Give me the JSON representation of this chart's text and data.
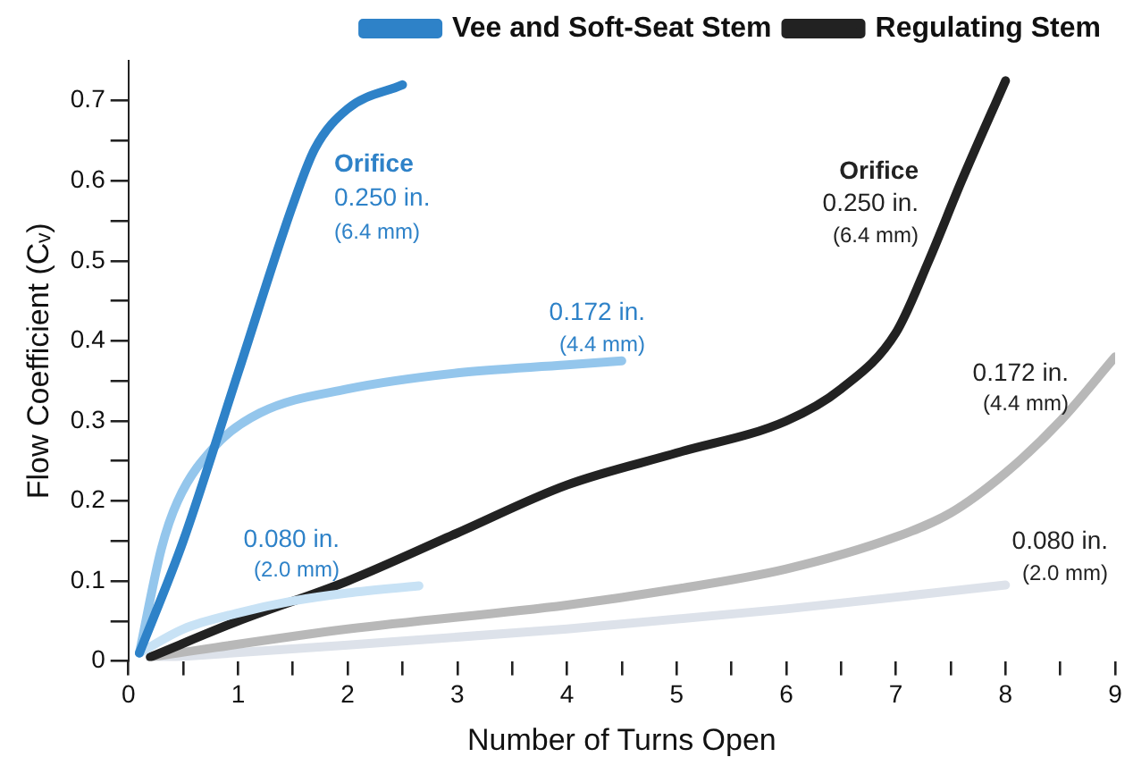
{
  "chart_data": {
    "type": "line",
    "xlabel": "Number of Turns Open",
    "ylabel": "Flow Coefficient (Cᵥ)",
    "xlim": [
      0,
      9
    ],
    "ylim": [
      0,
      0.75
    ],
    "xticks": [
      0,
      {
        "value": 0.5,
        "label": null
      },
      1,
      {
        "value": 1.5,
        "label": null
      },
      2,
      {
        "value": 2.5,
        "label": null
      },
      3,
      {
        "value": 3.5,
        "label": null
      },
      4,
      {
        "value": 4.5,
        "label": null
      },
      5,
      {
        "value": 5.5,
        "label": null
      },
      6,
      {
        "value": 6.5,
        "label": null
      },
      7,
      {
        "value": 7.5,
        "label": null
      },
      8,
      {
        "value": 8.5,
        "label": null
      },
      9
    ],
    "yticks": [
      0,
      {
        "value": 0.05,
        "label": null
      },
      0.1,
      {
        "value": 0.15,
        "label": null
      },
      0.2,
      {
        "value": 0.25,
        "label": null
      },
      0.3,
      {
        "value": 0.35,
        "label": null
      },
      0.4,
      {
        "value": 0.45,
        "label": null
      },
      0.5,
      {
        "value": 0.55,
        "label": null
      },
      0.6,
      {
        "value": 0.65,
        "label": null
      },
      0.7
    ],
    "grid": false,
    "legend": "top",
    "marker": "none",
    "line_style": "solid",
    "series": [
      {
        "name": "Vee and Soft-Seat Stem",
        "color": "#2e82c8",
        "x": [
          0.1,
          0.5,
          1.0,
          1.5,
          1.7,
          2.0,
          2.5
        ],
        "values": [
          0.01,
          0.15,
          0.36,
          0.57,
          0.64,
          0.69,
          0.72
        ]
      },
      {
        "color": "#94c6ec",
        "x": [
          0.1,
          0.3,
          0.45,
          0.8,
          1.2,
          2.0,
          3.0,
          4.0,
          4.5
        ],
        "values": [
          0.01,
          0.14,
          0.2,
          0.27,
          0.31,
          0.34,
          0.36,
          0.37,
          0.375
        ]
      },
      {
        "color": "#c8e2f5",
        "x": [
          0.1,
          0.5,
          1.0,
          1.5,
          2.0,
          2.65
        ],
        "values": [
          0.01,
          0.04,
          0.06,
          0.075,
          0.085,
          0.094
        ]
      },
      {
        "name": "Regulating Stem",
        "color": "#222222",
        "x": [
          0.2,
          1,
          2,
          3,
          4,
          5,
          6,
          6.5,
          7,
          7.3,
          7.6,
          8
        ],
        "values": [
          0.005,
          0.05,
          0.1,
          0.16,
          0.22,
          0.26,
          0.3,
          0.34,
          0.41,
          0.5,
          0.6,
          0.725
        ]
      },
      {
        "color": "#b8b8b8",
        "x": [
          0.2,
          2,
          4,
          5,
          6,
          7,
          7.5,
          8,
          8.5,
          9
        ],
        "values": [
          0.005,
          0.04,
          0.07,
          0.09,
          0.115,
          0.155,
          0.185,
          0.235,
          0.3,
          0.38
        ]
      },
      {
        "color": "#dde2ea",
        "x": [
          0.2,
          2,
          4,
          6,
          8
        ],
        "values": [
          0.003,
          0.02,
          0.04,
          0.065,
          0.095
        ]
      }
    ],
    "annotations": [
      "Orifice\n0.250 in.\n(6.4 mm)",
      "0.172 in.\n(4.4 mm)",
      "0.080 in.\n(2.0 mm)",
      "Orifice\n0.250 in.\n(6.4 mm)",
      "0.172 in.\n(4.4 mm)",
      "0.080 in.\n(2.0 mm)"
    ]
  }
}
